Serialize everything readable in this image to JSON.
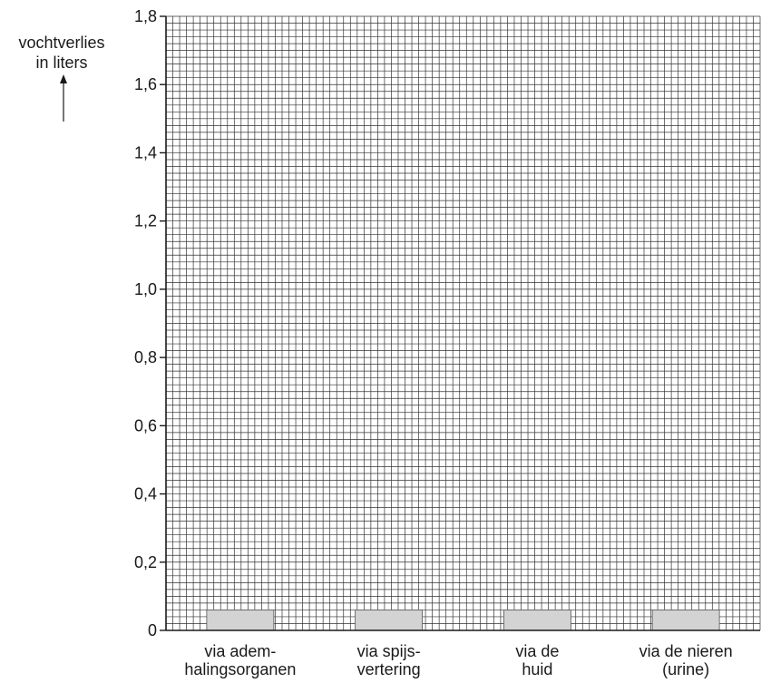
{
  "chart_data": {
    "type": "bar",
    "ylabel_line1": "vochtverlies",
    "ylabel_line2": "in liters",
    "ylim": [
      0,
      1.8
    ],
    "yticks": [
      "0",
      "0,2",
      "0,4",
      "0,6",
      "0,8",
      "1,0",
      "1,2",
      "1,4",
      "1,6",
      "1,8"
    ],
    "categories": [
      {
        "line1": "via adem-",
        "line2": "halingsorganen"
      },
      {
        "line1": "via spijs-",
        "line2": "vertering"
      },
      {
        "line1": "via de",
        "line2": "huid"
      },
      {
        "line1": "via de nieren",
        "line2": "(urine)"
      }
    ],
    "values": [
      0.06,
      0.06,
      0.06,
      0.06
    ],
    "grid": true,
    "colors": {
      "bar": "#d3d3d3",
      "grid": "#333333",
      "axis": "#1a1a1a"
    }
  }
}
